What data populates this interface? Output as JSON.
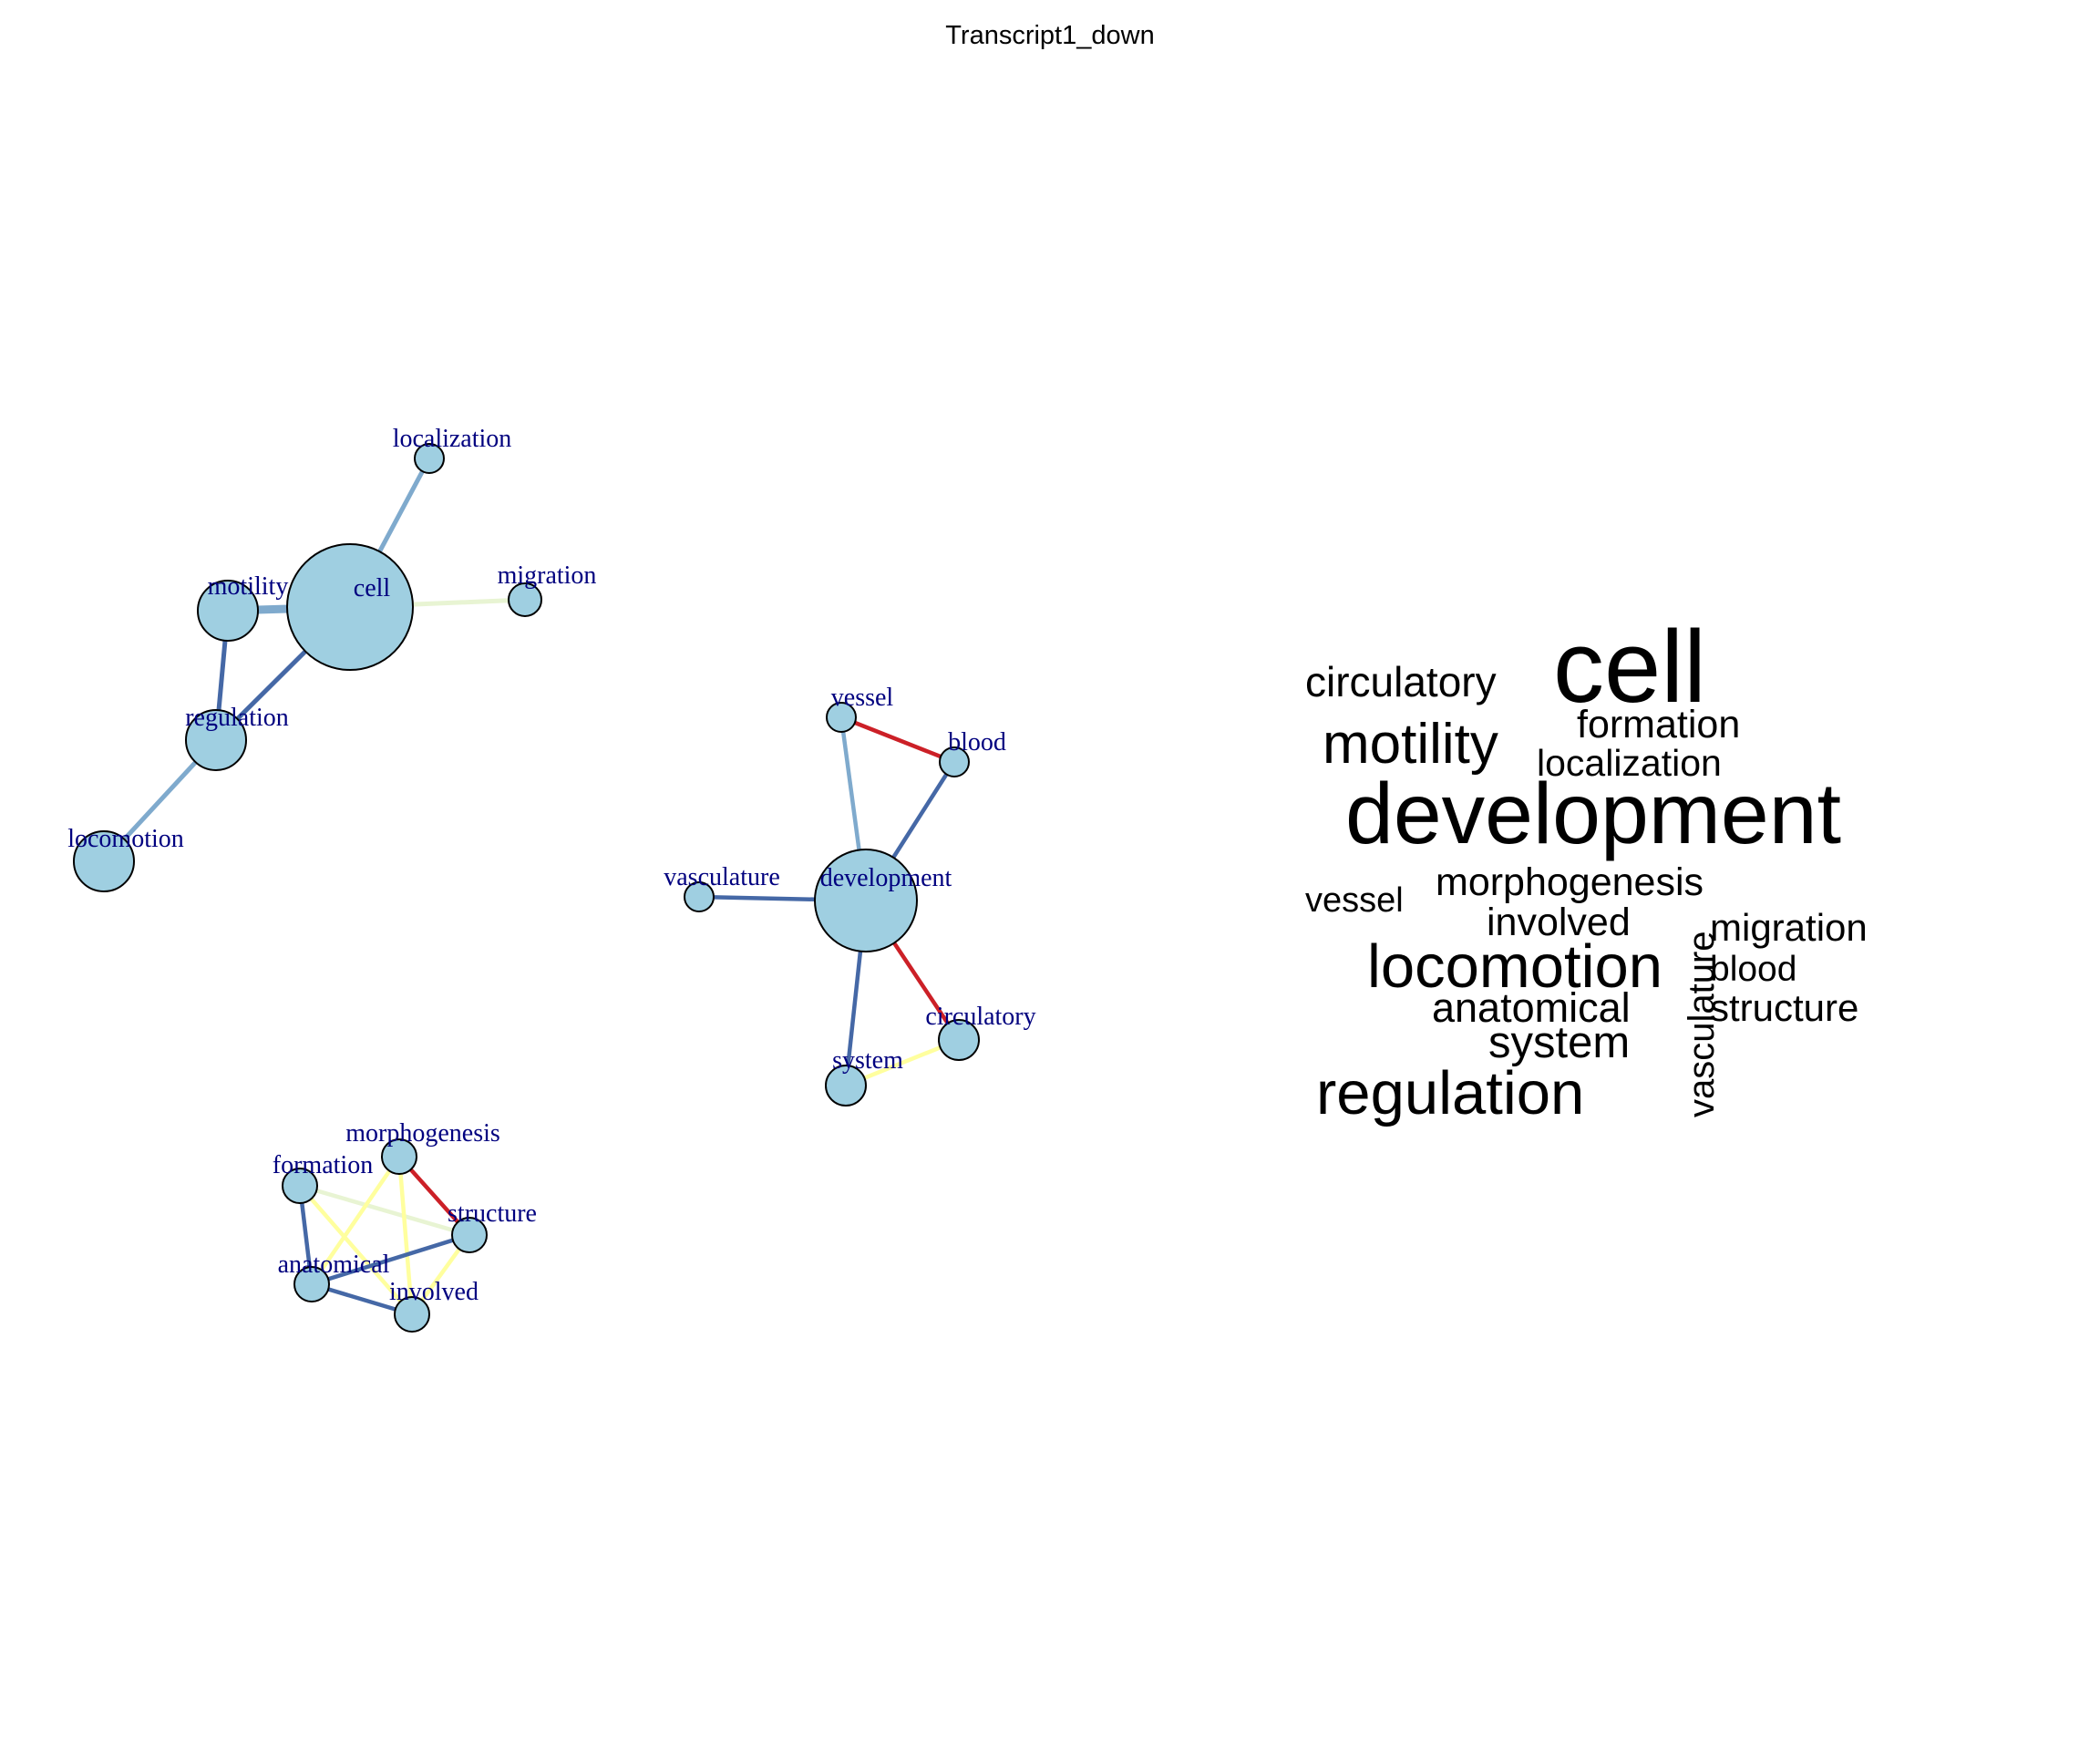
{
  "title": "Transcript1_down",
  "colors": {
    "node_fill": "#9fcfe1",
    "label_text": "#00007f",
    "edge_strong": "#4568a6",
    "edge_medium": "#7faacd",
    "edge_pale": "#e8f4d3",
    "edge_yellow": "#ffff9e",
    "edge_red": "#cc2027"
  },
  "network": {
    "nodes": [
      {
        "id": "cell",
        "label": "cell"
      },
      {
        "id": "motility",
        "label": "motility"
      },
      {
        "id": "localization",
        "label": "localization"
      },
      {
        "id": "migration",
        "label": "migration"
      },
      {
        "id": "regulation",
        "label": "regulation"
      },
      {
        "id": "locomotion",
        "label": "locomotion"
      },
      {
        "id": "development",
        "label": "development"
      },
      {
        "id": "vessel",
        "label": "vessel"
      },
      {
        "id": "blood",
        "label": "blood"
      },
      {
        "id": "vasculature",
        "label": "vasculature"
      },
      {
        "id": "circulatory",
        "label": "circulatory"
      },
      {
        "id": "system",
        "label": "system"
      },
      {
        "id": "morphogenesis",
        "label": "morphogenesis"
      },
      {
        "id": "formation",
        "label": "formation"
      },
      {
        "id": "structure",
        "label": "structure"
      },
      {
        "id": "anatomical",
        "label": "anatomical"
      },
      {
        "id": "involved",
        "label": "involved"
      }
    ],
    "edges": [
      {
        "from": "cell",
        "to": "localization",
        "color": "edge_medium"
      },
      {
        "from": "cell",
        "to": "migration",
        "color": "edge_pale"
      },
      {
        "from": "cell",
        "to": "motility",
        "color": "edge_medium"
      },
      {
        "from": "cell",
        "to": "regulation",
        "color": "edge_strong"
      },
      {
        "from": "motility",
        "to": "regulation",
        "color": "edge_strong"
      },
      {
        "from": "regulation",
        "to": "locomotion",
        "color": "edge_medium"
      },
      {
        "from": "development",
        "to": "vessel",
        "color": "edge_medium"
      },
      {
        "from": "development",
        "to": "blood",
        "color": "edge_strong"
      },
      {
        "from": "vessel",
        "to": "blood",
        "color": "edge_red"
      },
      {
        "from": "development",
        "to": "vasculature",
        "color": "edge_strong"
      },
      {
        "from": "development",
        "to": "circulatory",
        "color": "edge_red"
      },
      {
        "from": "development",
        "to": "system",
        "color": "edge_strong"
      },
      {
        "from": "system",
        "to": "circulatory",
        "color": "edge_yellow"
      },
      {
        "from": "morphogenesis",
        "to": "structure",
        "color": "edge_red"
      },
      {
        "from": "formation",
        "to": "structure",
        "color": "edge_pale"
      },
      {
        "from": "morphogenesis",
        "to": "anatomical",
        "color": "edge_yellow"
      },
      {
        "from": "morphogenesis",
        "to": "involved",
        "color": "edge_yellow"
      },
      {
        "from": "formation",
        "to": "involved",
        "color": "edge_yellow"
      },
      {
        "from": "structure",
        "to": "involved",
        "color": "edge_yellow"
      },
      {
        "from": "formation",
        "to": "anatomical",
        "color": "edge_strong"
      },
      {
        "from": "anatomical",
        "to": "involved",
        "color": "edge_strong"
      },
      {
        "from": "anatomical",
        "to": "structure",
        "color": "edge_strong"
      }
    ]
  },
  "word_cloud": [
    {
      "word": "cell"
    },
    {
      "word": "development"
    },
    {
      "word": "motility"
    },
    {
      "word": "circulatory"
    },
    {
      "word": "formation"
    },
    {
      "word": "localization"
    },
    {
      "word": "vessel"
    },
    {
      "word": "morphogenesis"
    },
    {
      "word": "involved"
    },
    {
      "word": "locomotion"
    },
    {
      "word": "migration"
    },
    {
      "word": "blood"
    },
    {
      "word": "anatomical"
    },
    {
      "word": "structure"
    },
    {
      "word": "system"
    },
    {
      "word": "regulation"
    },
    {
      "word": "vasculature"
    }
  ]
}
